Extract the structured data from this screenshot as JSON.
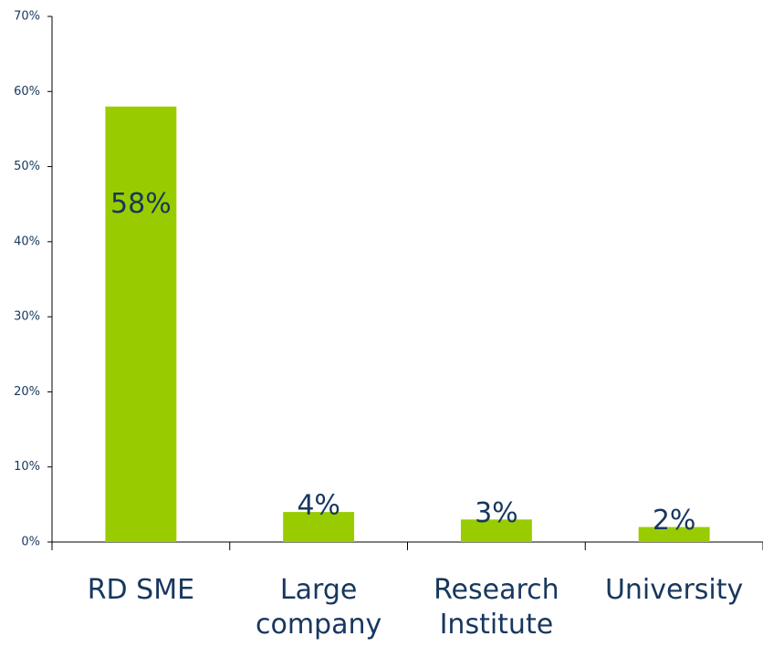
{
  "chart_data": {
    "type": "bar",
    "categories": [
      "RD SME",
      "Large company",
      "Research Institute",
      "University"
    ],
    "values": [
      58,
      4,
      3,
      2
    ],
    "value_labels": [
      "58%",
      "4%",
      "3%",
      "2%"
    ],
    "color": "#99cc00",
    "ylim": [
      0,
      70
    ],
    "yticks": [
      {
        "value": 0,
        "label": "0%"
      },
      {
        "value": 10,
        "label": "10%"
      },
      {
        "value": 20,
        "label": "20%"
      },
      {
        "value": 30,
        "label": "30%"
      },
      {
        "value": 40,
        "label": "40%"
      },
      {
        "value": 50,
        "label": "50%"
      },
      {
        "value": 60,
        "label": "60%"
      },
      {
        "value": 70,
        "label": "70%"
      }
    ],
    "grid": false
  }
}
